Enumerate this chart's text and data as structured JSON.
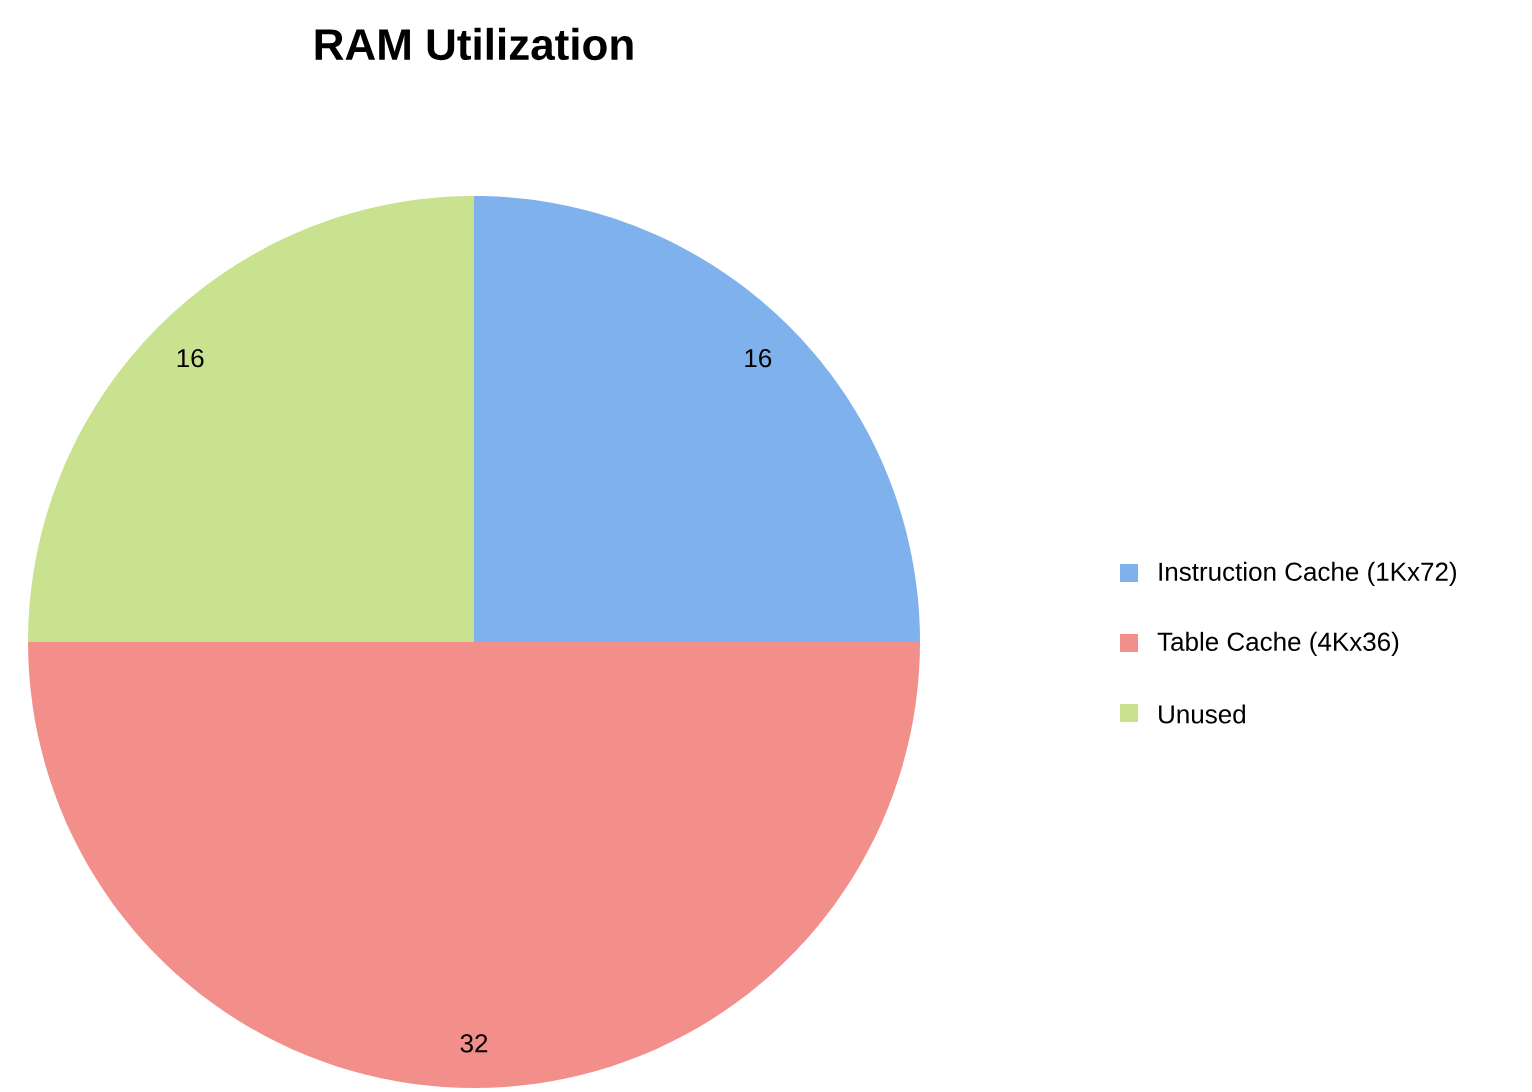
{
  "chart_data": {
    "type": "pie",
    "title": "RAM Utilization",
    "categories": [
      "Instruction Cache (1Kx72)",
      "Table Cache (4Kx36)",
      "Unused"
    ],
    "values": [
      16,
      32,
      16
    ],
    "colors": [
      "#7fb1ec",
      "#f28f8b",
      "#c9e28f"
    ],
    "data_labels": true,
    "legend": "right"
  }
}
